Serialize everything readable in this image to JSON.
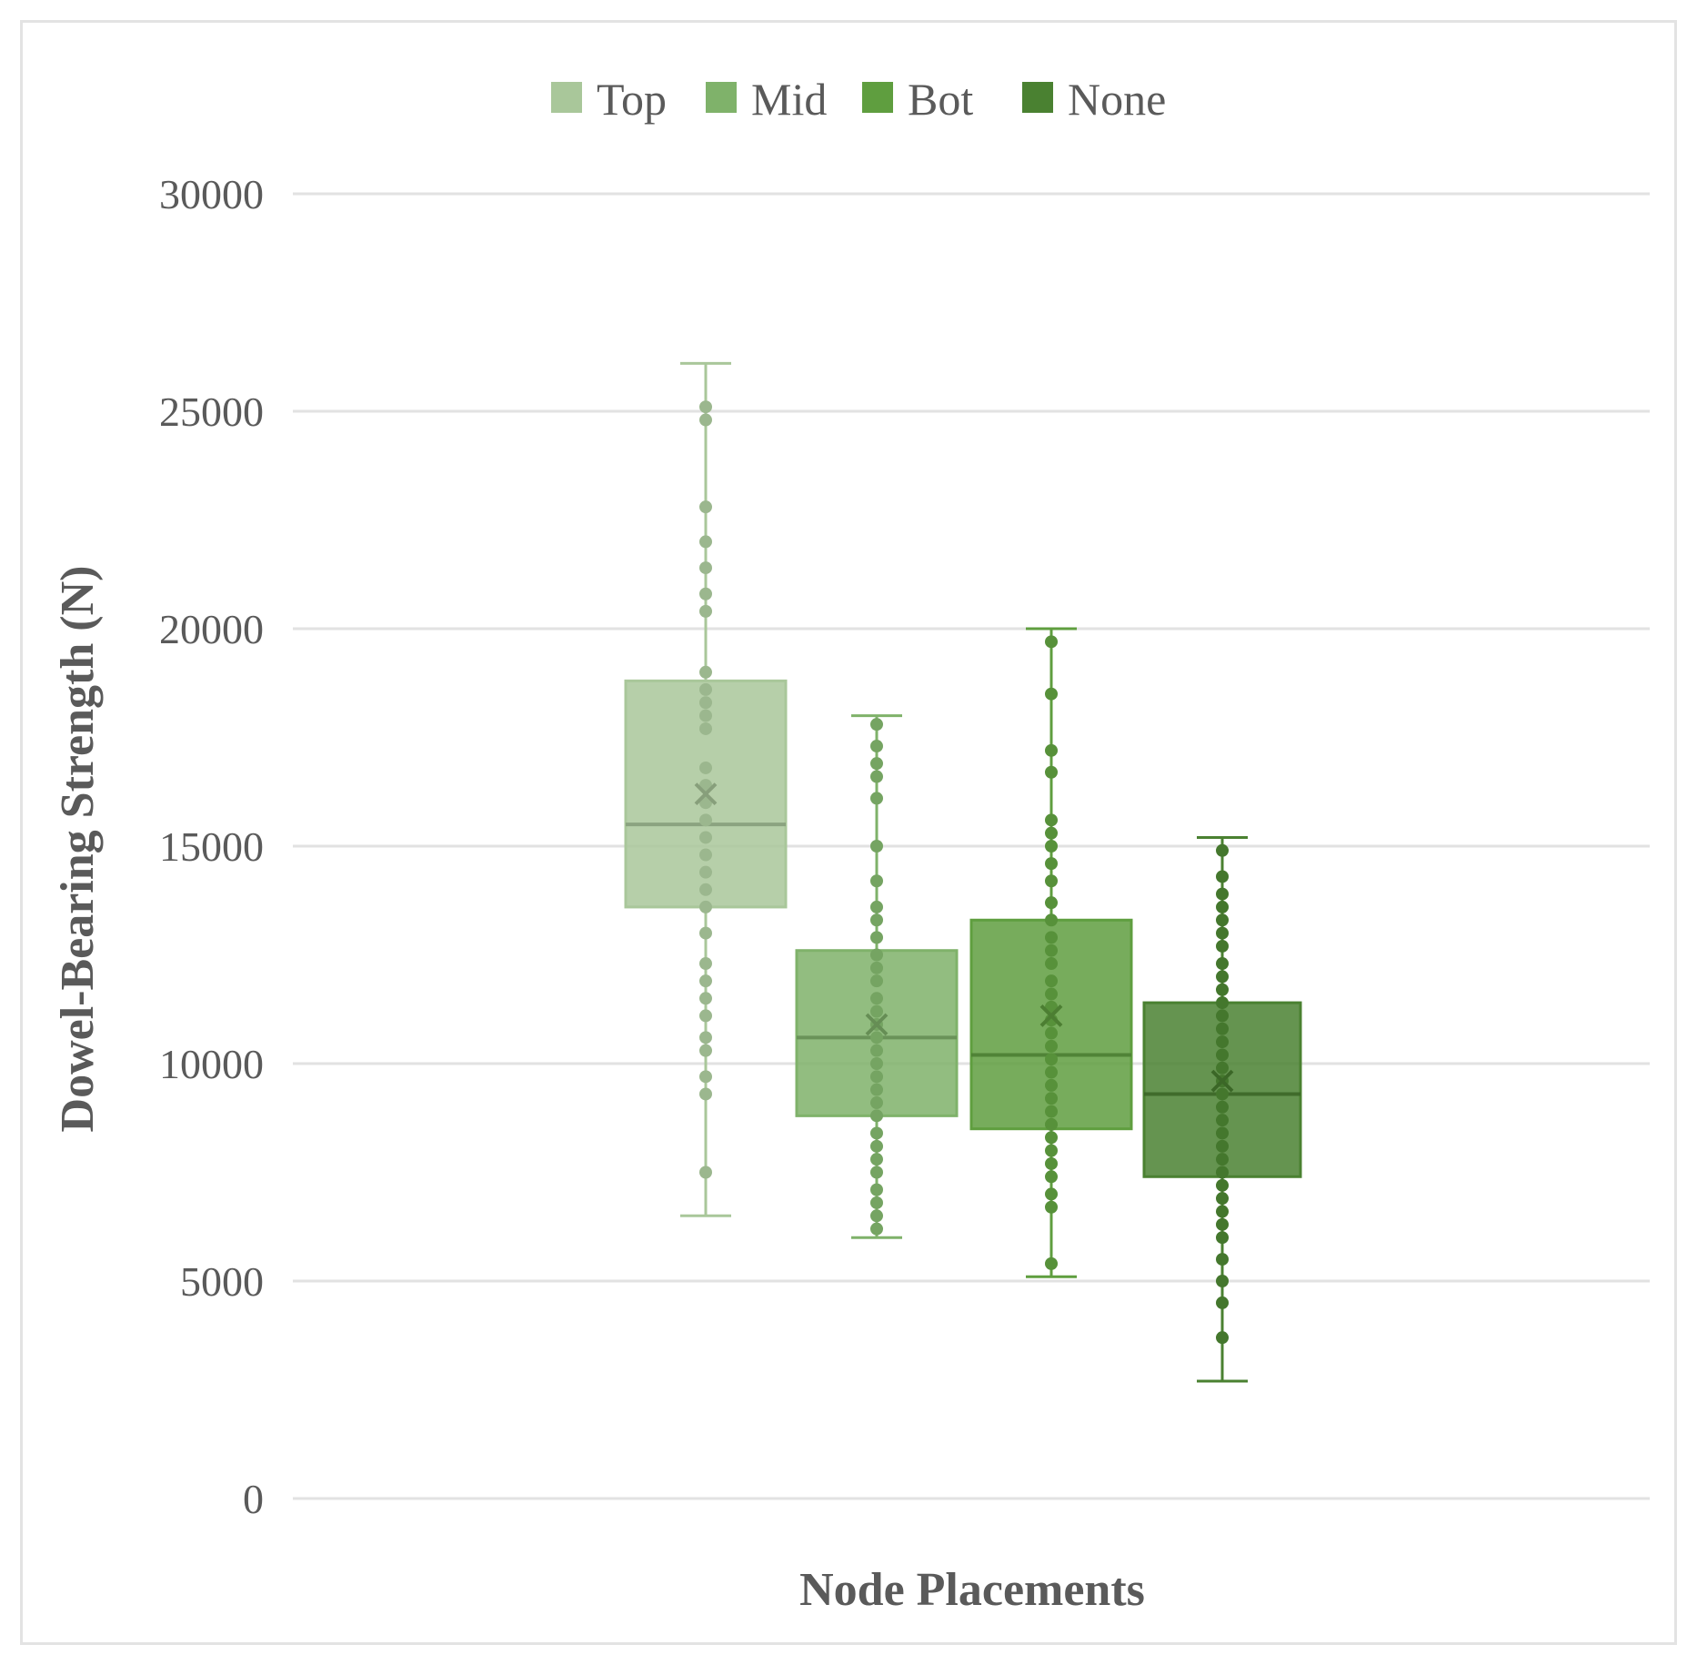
{
  "chart_data": {
    "type": "box",
    "title": "",
    "xlabel": "Node Placements",
    "ylabel": "Dowel-Bearing Strength (N)",
    "ylim": [
      0,
      30000
    ],
    "yticks": [
      "0",
      "5000",
      "10000",
      "15000",
      "20000",
      "25000",
      "30000"
    ],
    "grid": true,
    "legend_position": "top",
    "series": [
      {
        "name": "Top",
        "color": "#a9c79a",
        "min": 6500,
        "q1": 13600,
        "median": 15500,
        "q3": 18800,
        "max": 26100,
        "mean": 16200,
        "points": [
          7500,
          9300,
          9700,
          10300,
          10600,
          11100,
          11500,
          11900,
          12300,
          13000,
          13600,
          14000,
          14400,
          14800,
          15200,
          15600,
          16000,
          16400,
          16800,
          17700,
          18000,
          18300,
          18600,
          19000,
          20400,
          20800,
          21400,
          22000,
          22800,
          24800,
          25100
        ]
      },
      {
        "name": "Mid",
        "color": "#7fb26a",
        "min": 6000,
        "q1": 8800,
        "median": 10600,
        "q3": 12600,
        "max": 18000,
        "mean": 10900,
        "points": [
          6200,
          6500,
          6800,
          7100,
          7500,
          7800,
          8100,
          8400,
          8800,
          9100,
          9400,
          9700,
          10000,
          10300,
          10600,
          10900,
          11200,
          11500,
          11900,
          12200,
          12500,
          12900,
          13300,
          13600,
          14200,
          15000,
          16100,
          16600,
          16900,
          17300,
          17800
        ]
      },
      {
        "name": "Bot",
        "color": "#5f9e3f",
        "min": 5100,
        "q1": 8500,
        "median": 10200,
        "q3": 13300,
        "max": 20000,
        "mean": 11100,
        "points": [
          5400,
          6700,
          7000,
          7400,
          7700,
          8000,
          8300,
          8600,
          8900,
          9200,
          9500,
          9800,
          10100,
          10400,
          10700,
          11000,
          11300,
          11600,
          11900,
          12300,
          12600,
          12900,
          13300,
          13700,
          14200,
          14600,
          15000,
          15300,
          15600,
          16700,
          17200,
          18500,
          19700
        ]
      },
      {
        "name": "None",
        "color": "#4a8131",
        "min": 2700,
        "q1": 7400,
        "median": 9300,
        "q3": 11400,
        "max": 15200,
        "mean": 9600,
        "points": [
          3700,
          4500,
          5000,
          5500,
          6000,
          6300,
          6600,
          6900,
          7200,
          7500,
          7800,
          8100,
          8400,
          8700,
          9000,
          9300,
          9600,
          9900,
          10200,
          10500,
          10800,
          11100,
          11400,
          11700,
          12000,
          12300,
          12700,
          13000,
          13300,
          13600,
          13900,
          14300,
          14900
        ]
      }
    ]
  }
}
